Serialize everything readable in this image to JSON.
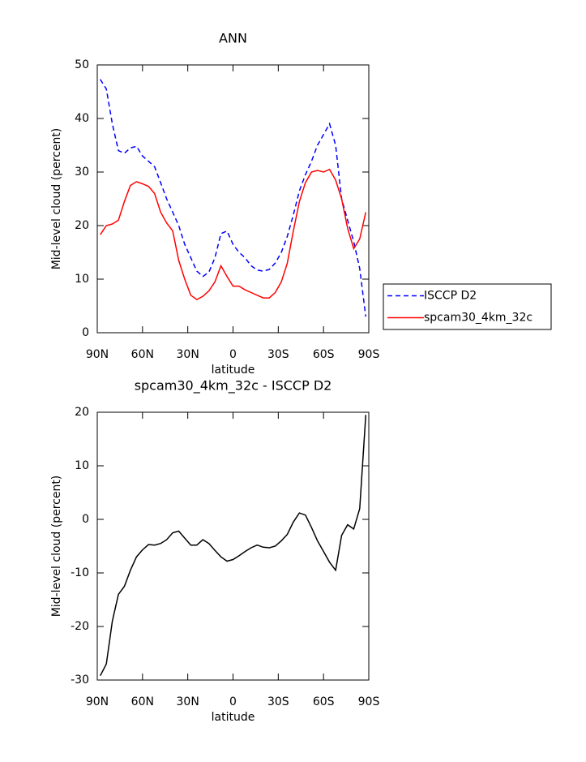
{
  "chart_data": [
    {
      "type": "line",
      "title": "ANN",
      "xlabel": "latitude",
      "ylabel": "Mid-level cloud (percent)",
      "x": [
        88,
        84,
        80,
        76,
        72,
        68,
        64,
        60,
        56,
        52,
        48,
        44,
        40,
        36,
        32,
        28,
        24,
        20,
        16,
        12,
        8,
        4,
        0,
        -4,
        -8,
        -12,
        -16,
        -20,
        -24,
        -28,
        -32,
        -36,
        -40,
        -44,
        -48,
        -52,
        -56,
        -60,
        -64,
        -68,
        -72,
        -76,
        -80,
        -84,
        -88
      ],
      "series": [
        {
          "name": "ISCCP D2",
          "color": "#0000ff",
          "linestyle": "dashed",
          "values": [
            47.3,
            45.5,
            39,
            34,
            33.5,
            34.5,
            34.8,
            33,
            32,
            31,
            28,
            25,
            22.5,
            20,
            16.5,
            14,
            11.5,
            10.5,
            11.3,
            14,
            18.5,
            19,
            16.5,
            15,
            14,
            12.5,
            11.7,
            11.5,
            11.8,
            13,
            15,
            18,
            22,
            26.5,
            29.5,
            32,
            35,
            37,
            39,
            35,
            25,
            21,
            17,
            12,
            3
          ]
        },
        {
          "name": "spcam30_4km_32c",
          "color": "#ff0000",
          "linestyle": "solid",
          "values": [
            18.3,
            20,
            20.3,
            21,
            24.5,
            27.5,
            28.2,
            27.8,
            27.3,
            26,
            22.5,
            20.5,
            19,
            13.5,
            10,
            7,
            6.2,
            6.8,
            7.8,
            9.5,
            12.5,
            10.5,
            8.7,
            8.7,
            8,
            7.5,
            7,
            6.5,
            6.5,
            7.5,
            9.5,
            13,
            19,
            24.5,
            28,
            30,
            30.3,
            30,
            30.5,
            28.5,
            25,
            19.5,
            15.7,
            17.5,
            22.5
          ]
        }
      ],
      "xlim": [
        90,
        -90
      ],
      "xticks": [
        {
          "value": 90,
          "label": "90N"
        },
        {
          "value": 60,
          "label": "60N"
        },
        {
          "value": 30,
          "label": "30N"
        },
        0,
        {
          "value": -30,
          "label": "30S"
        },
        {
          "value": -60,
          "label": "60S"
        },
        {
          "value": -90,
          "label": "90S"
        }
      ],
      "ylim": [
        0,
        50
      ],
      "yticks": [
        0,
        10,
        20,
        30,
        40,
        50
      ],
      "legend": "right"
    },
    {
      "type": "line",
      "title": "spcam30_4km_32c - ISCCP D2",
      "xlabel": "latitude",
      "ylabel": "Mid-level cloud (percent)",
      "x": [
        88,
        84,
        80,
        76,
        72,
        68,
        64,
        60,
        56,
        52,
        48,
        44,
        40,
        36,
        32,
        28,
        24,
        20,
        16,
        12,
        8,
        4,
        0,
        -4,
        -8,
        -12,
        -16,
        -20,
        -24,
        -28,
        -32,
        -36,
        -40,
        -44,
        -48,
        -52,
        -56,
        -60,
        -64,
        -68,
        -72,
        -76,
        -80,
        -84,
        -88
      ],
      "series": [
        {
          "color": "#000000",
          "linestyle": "solid",
          "values": [
            -29.2,
            -27,
            -19,
            -14,
            -12.5,
            -9.5,
            -7,
            -5.7,
            -4.7,
            -4.8,
            -4.5,
            -3.8,
            -2.5,
            -2.2,
            -3.5,
            -4.8,
            -4.8,
            -3.8,
            -4.5,
            -5.8,
            -7,
            -7.8,
            -7.5,
            -6.8,
            -6,
            -5.3,
            -4.8,
            -5.2,
            -5.3,
            -5,
            -4,
            -2.8,
            -0.5,
            1.2,
            0.8,
            -1.5,
            -4,
            -6,
            -8,
            -9.5,
            -3,
            -1,
            -1.8,
            2,
            19.5
          ]
        }
      ],
      "xlim": [
        90,
        -90
      ],
      "xticks": [
        {
          "value": 90,
          "label": "90N"
        },
        {
          "value": 60,
          "label": "60N"
        },
        {
          "value": 30,
          "label": "30N"
        },
        0,
        {
          "value": -30,
          "label": "30S"
        },
        {
          "value": -60,
          "label": "60S"
        },
        {
          "value": -90,
          "label": "90S"
        }
      ],
      "ylim": [
        -30,
        20
      ],
      "yticks": [
        -30,
        -20,
        -10,
        0,
        10,
        20
      ]
    }
  ]
}
